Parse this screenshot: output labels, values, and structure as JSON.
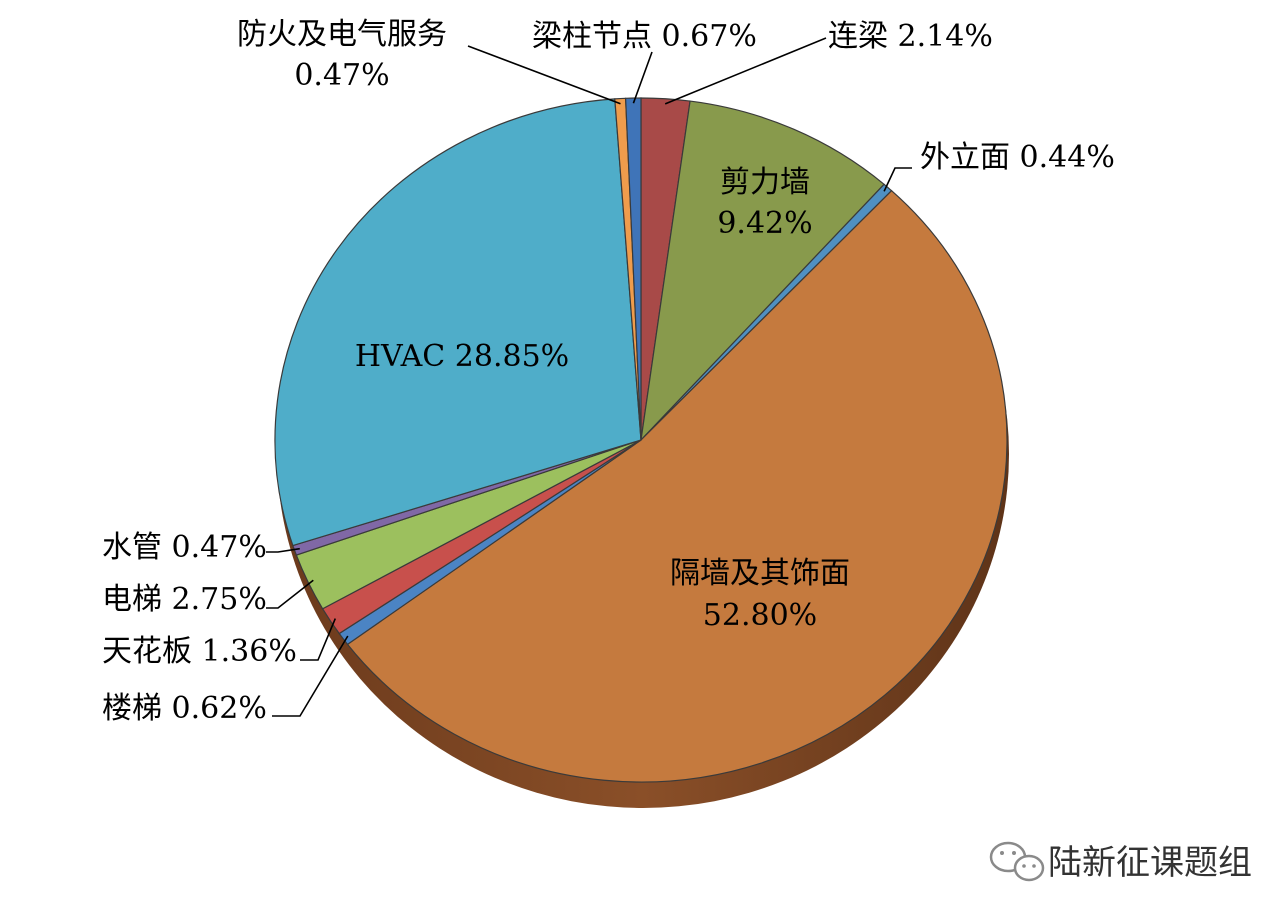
{
  "chart_data": {
    "type": "pie",
    "title": "",
    "start_angle_deg": 0,
    "direction": "clockwise",
    "slices": [
      {
        "name": "连梁",
        "label": "连梁 2.14%",
        "value": 2.14,
        "color": "#a84a48"
      },
      {
        "name": "剪力墙",
        "label": "剪力墙",
        "pct_label": "9.42%",
        "value": 9.42,
        "color": "#889a4c"
      },
      {
        "name": "外立面",
        "label": "外立面 0.44%",
        "value": 0.44,
        "color": "#4f90c2"
      },
      {
        "name": "隔墙及其饰面",
        "label": "隔墙及其饰面",
        "pct_label": "52.80%",
        "value": 52.8,
        "color": "#c57a3e"
      },
      {
        "name": "楼梯",
        "label": "楼梯 0.62%",
        "value": 0.62,
        "color": "#4b84c4"
      },
      {
        "name": "天花板",
        "label": "天花板 1.36%",
        "value": 1.36,
        "color": "#c8504c"
      },
      {
        "name": "电梯",
        "label": "电梯 2.75%",
        "value": 2.75,
        "color": "#9cc05e"
      },
      {
        "name": "水管",
        "label": "水管 0.47%",
        "value": 0.47,
        "color": "#8068a6"
      },
      {
        "name": "HVAC",
        "label": "HVAC 28.85%",
        "value": 28.85,
        "color": "#4fadc9"
      },
      {
        "name": "防火及电气服务",
        "label": "防火及电气服务",
        "pct_label": "0.47%",
        "value": 0.47,
        "color": "#ef9c4c"
      },
      {
        "name": "梁柱节点",
        "label": "梁柱节点 0.67%",
        "value": 0.67,
        "color": "#3f74b8"
      }
    ]
  },
  "watermark": {
    "text": "陆新征课题组",
    "icon": "wechat-icon"
  }
}
